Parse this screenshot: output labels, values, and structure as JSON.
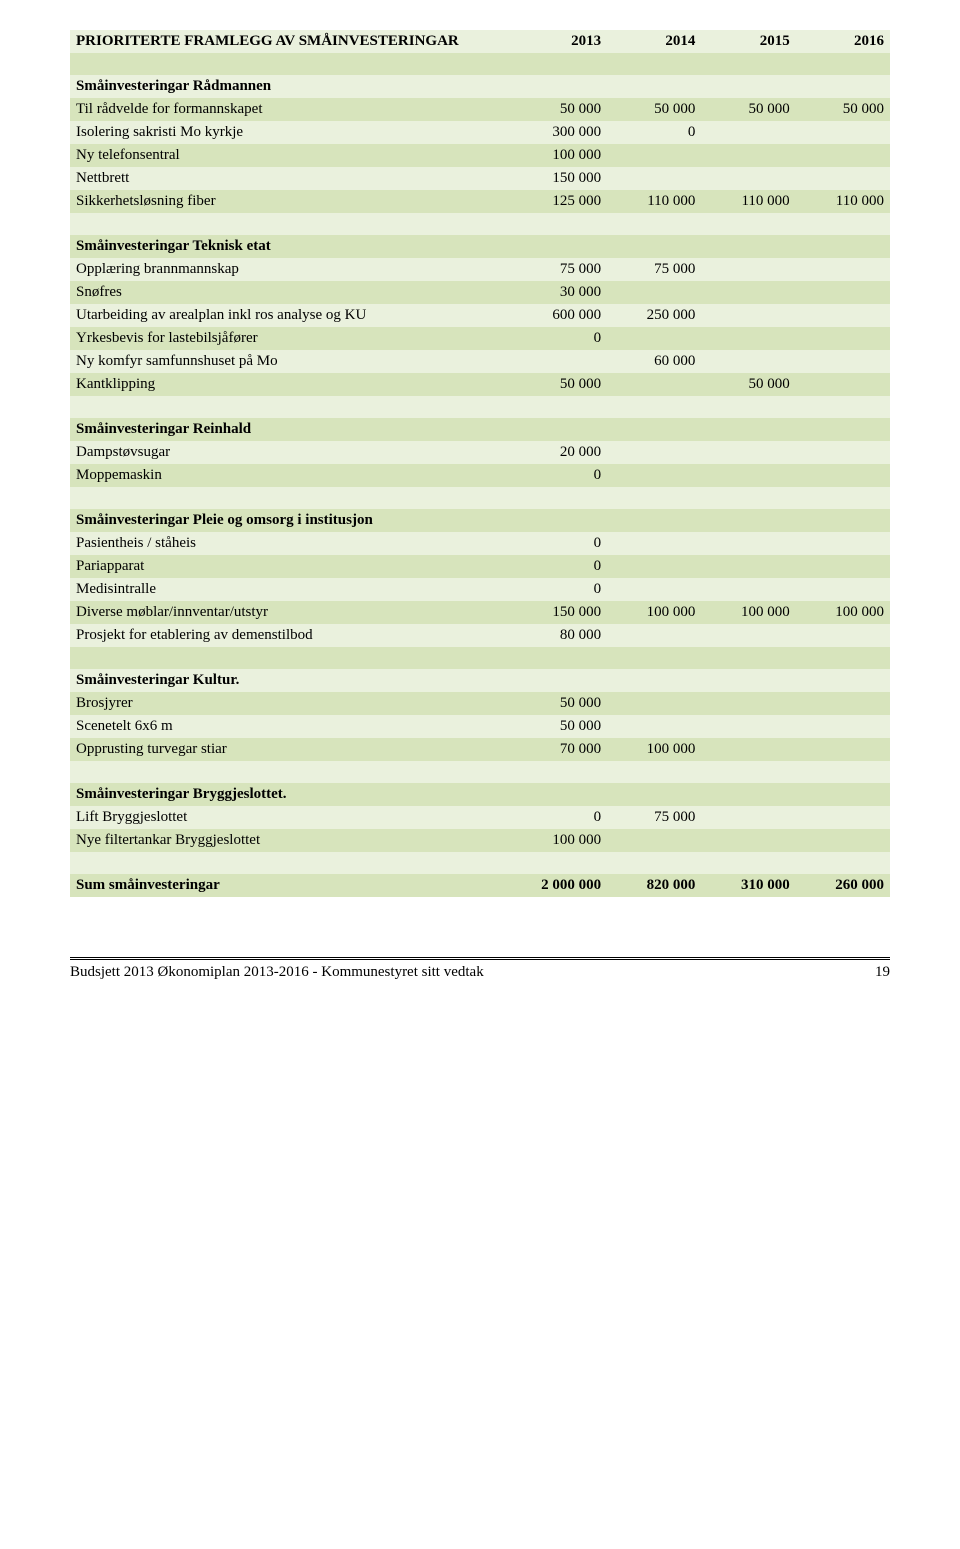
{
  "header": {
    "title": "PRIORITERTE FRAMLEGG AV SMÅINVESTERINGAR",
    "years": [
      "2013",
      "2014",
      "2015",
      "2016"
    ]
  },
  "colors": {
    "light": "#eaf1dd",
    "dark": "#d7e4bc",
    "text": "#000000",
    "background": "#ffffff"
  },
  "sections": [
    {
      "title": "Småinvesteringar Rådmannen",
      "rows": [
        {
          "label": "Til rådvelde for formannskapet",
          "v": [
            "50 000",
            "50 000",
            "50 000",
            "50 000"
          ]
        },
        {
          "label": "Isolering sakristi Mo kyrkje",
          "v": [
            "300 000",
            "0",
            "",
            ""
          ]
        },
        {
          "label": "Ny telefonsentral",
          "v": [
            "100 000",
            "",
            "",
            ""
          ]
        },
        {
          "label": "Nettbrett",
          "v": [
            "150 000",
            "",
            "",
            ""
          ]
        },
        {
          "label": "Sikkerhetsløsning fiber",
          "v": [
            "125 000",
            "110 000",
            "110 000",
            "110 000"
          ]
        }
      ]
    },
    {
      "title": "Småinvesteringar Teknisk etat",
      "rows": [
        {
          "label": "Opplæring brannmannskap",
          "v": [
            "75 000",
            "75 000",
            "",
            ""
          ]
        },
        {
          "label": "Snøfres",
          "v": [
            "30 000",
            "",
            "",
            ""
          ]
        },
        {
          "label": "Utarbeiding av arealplan inkl ros analyse og KU",
          "v": [
            "600 000",
            "250 000",
            "",
            ""
          ]
        },
        {
          "label": "Yrkesbevis for lastebilsjåfører",
          "v": [
            "0",
            "",
            "",
            ""
          ]
        },
        {
          "label": "Ny komfyr  samfunnshuset på Mo",
          "v": [
            "",
            "60 000",
            "",
            ""
          ]
        },
        {
          "label": "Kantklipping",
          "v": [
            "50 000",
            "",
            "50 000",
            ""
          ]
        }
      ]
    },
    {
      "title": "Småinvesteringar Reinhald",
      "rows": [
        {
          "label": "Dampstøvsugar",
          "v": [
            "20 000",
            "",
            "",
            ""
          ]
        },
        {
          "label": "Moppemaskin",
          "v": [
            "0",
            "",
            "",
            ""
          ]
        }
      ]
    },
    {
      "title": "Småinvesteringar Pleie og omsorg i institusjon",
      "rows": [
        {
          "label": "Pasientheis / ståheis",
          "v": [
            "0",
            "",
            "",
            ""
          ]
        },
        {
          "label": "Pariapparat",
          "v": [
            "0",
            "",
            "",
            ""
          ]
        },
        {
          "label": "Medisintralle",
          "v": [
            "0",
            "",
            "",
            ""
          ]
        },
        {
          "label": "Diverse møblar/innventar/utstyr",
          "v": [
            "150 000",
            "100 000",
            "100 000",
            "100 000"
          ]
        },
        {
          "label": "Prosjekt for etablering av demenstilbod",
          "v": [
            "80 000",
            "",
            "",
            ""
          ]
        }
      ]
    },
    {
      "title": "Småinvesteringar Kultur.",
      "rows": [
        {
          "label": "Brosjyrer",
          "v": [
            "50 000",
            "",
            "",
            ""
          ]
        },
        {
          "label": "Scenetelt 6x6 m",
          "v": [
            "50 000",
            "",
            "",
            ""
          ]
        },
        {
          "label": "Opprusting turvegar stiar",
          "v": [
            "70 000",
            "100 000",
            "",
            ""
          ]
        }
      ]
    },
    {
      "title": "Småinvesteringar Bryggjeslottet.",
      "rows": [
        {
          "label": "Lift Bryggjeslottet",
          "v": [
            "0",
            "75 000",
            "",
            ""
          ]
        },
        {
          "label": "Nye filtertankar Bryggjeslottet",
          "v": [
            "100 000",
            "",
            "",
            ""
          ]
        }
      ]
    }
  ],
  "sum": {
    "label": "Sum småinvesteringar",
    "v": [
      "2 000 000",
      "820 000",
      "310 000",
      "260 000"
    ]
  },
  "footer": {
    "text": "Budsjett 2013 Økonomiplan 2013-2016  - Kommunestyret sitt vedtak",
    "page": "19"
  }
}
